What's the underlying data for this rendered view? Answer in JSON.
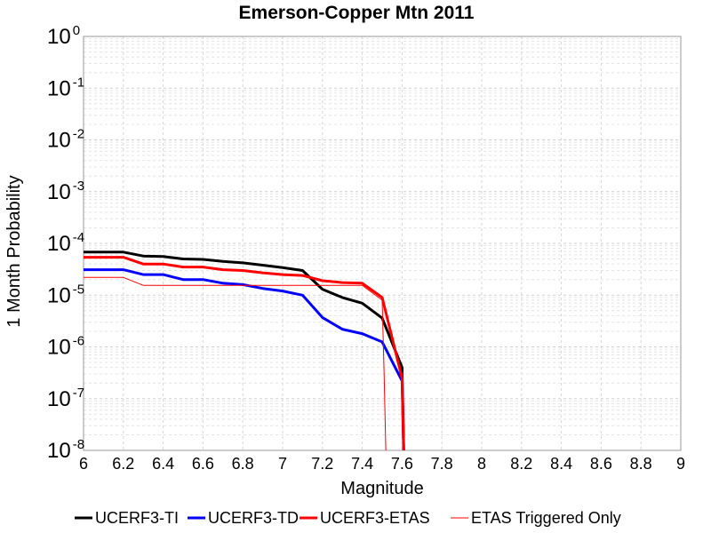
{
  "chart_data": {
    "type": "line",
    "title": "Emerson-Copper Mtn 2011",
    "xlabel": "Magnitude",
    "ylabel": "1 Month Probability",
    "xlim": [
      6,
      9
    ],
    "ylim": [
      1e-08,
      1
    ],
    "y_scale": "log",
    "grid": true,
    "legend_position": "bottom",
    "x_ticks": [
      "6",
      "6.2",
      "6.4",
      "6.6",
      "6.8",
      "7",
      "7.2",
      "7.4",
      "7.6",
      "7.8",
      "8",
      "8.2",
      "8.4",
      "8.6",
      "8.8",
      "9"
    ],
    "y_ticks": [
      {
        "base": "10",
        "exp": "0"
      },
      {
        "base": "10",
        "exp": "-1"
      },
      {
        "base": "10",
        "exp": "-2"
      },
      {
        "base": "10",
        "exp": "-3"
      },
      {
        "base": "10",
        "exp": "-4"
      },
      {
        "base": "10",
        "exp": "-5"
      },
      {
        "base": "10",
        "exp": "-6"
      },
      {
        "base": "10",
        "exp": "-7"
      },
      {
        "base": "10",
        "exp": "-8"
      }
    ],
    "series": [
      {
        "name": "UCERF3-TI",
        "color": "#000000",
        "width": 3,
        "x": [
          6.0,
          6.2,
          6.3,
          6.4,
          6.5,
          6.6,
          6.7,
          6.8,
          6.9,
          7.0,
          7.1,
          7.2,
          7.3,
          7.4,
          7.5,
          7.6,
          7.61
        ],
        "y": [
          6.8e-05,
          6.8e-05,
          5.7e-05,
          5.6e-05,
          5e-05,
          4.9e-05,
          4.5e-05,
          4.2e-05,
          3.8e-05,
          3.4e-05,
          3e-05,
          1.3e-05,
          9e-06,
          7e-06,
          3.6e-06,
          4e-07,
          5e-09
        ]
      },
      {
        "name": "UCERF3-TD",
        "color": "#0000ff",
        "width": 3,
        "x": [
          6.0,
          6.2,
          6.3,
          6.4,
          6.5,
          6.6,
          6.7,
          6.8,
          6.9,
          7.0,
          7.1,
          7.2,
          7.3,
          7.4,
          7.5,
          7.6,
          7.61
        ],
        "y": [
          3.1e-05,
          3.1e-05,
          2.5e-05,
          2.5e-05,
          2e-05,
          2e-05,
          1.7e-05,
          1.6e-05,
          1.35e-05,
          1.2e-05,
          1e-05,
          3.7e-06,
          2.2e-06,
          1.8e-06,
          1.25e-06,
          2.2e-07,
          5e-09
        ]
      },
      {
        "name": "UCERF3-ETAS",
        "color": "#ff0000",
        "width": 3,
        "x": [
          6.0,
          6.2,
          6.3,
          6.4,
          6.5,
          6.6,
          6.7,
          6.8,
          6.9,
          7.0,
          7.1,
          7.2,
          7.3,
          7.4,
          7.5,
          7.6,
          7.61
        ],
        "y": [
          5.4e-05,
          5.4e-05,
          4e-05,
          4e-05,
          3.5e-05,
          3.5e-05,
          3.1e-05,
          3e-05,
          2.7e-05,
          2.5e-05,
          2.4e-05,
          1.9e-05,
          1.75e-05,
          1.7e-05,
          9e-06,
          2.5e-07,
          5e-09
        ]
      },
      {
        "name": "ETAS Triggered Only",
        "color": "#ff0000",
        "width": 1,
        "x": [
          6.0,
          6.2,
          6.3,
          6.4,
          6.5,
          6.6,
          6.7,
          6.8,
          6.9,
          7.0,
          7.1,
          7.2,
          7.3,
          7.4,
          7.5,
          7.51,
          7.52
        ],
        "y": [
          2.2e-05,
          2.2e-05,
          1.55e-05,
          1.55e-05,
          1.55e-05,
          1.55e-05,
          1.55e-05,
          1.55e-05,
          1.55e-05,
          1.55e-05,
          1.55e-05,
          1.55e-05,
          1.55e-05,
          1.55e-05,
          8e-06,
          3e-07,
          5e-09
        ]
      }
    ]
  }
}
